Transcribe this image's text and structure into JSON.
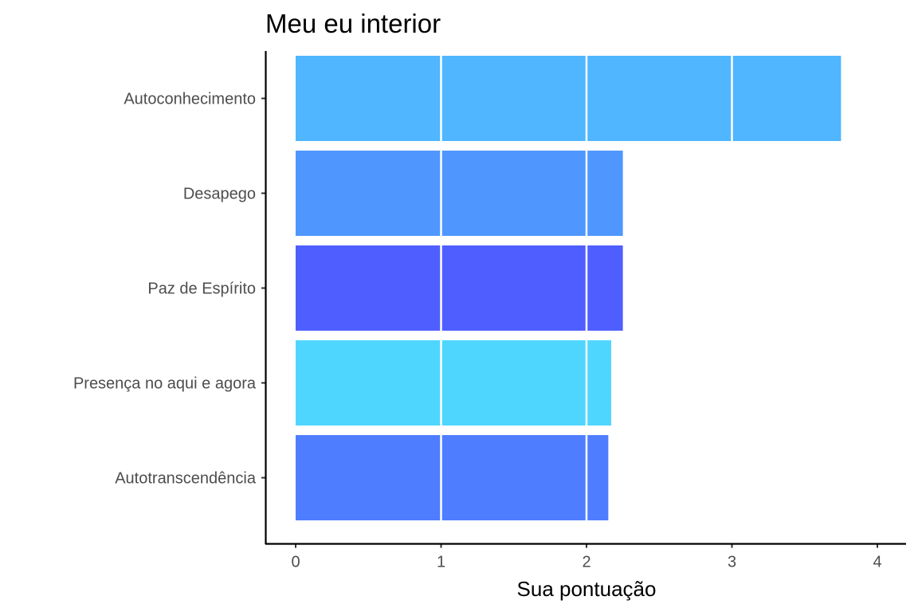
{
  "chart_data": {
    "type": "bar",
    "orientation": "horizontal",
    "title": "Meu eu interior",
    "xlabel": "Sua pontuação",
    "ylabel": "",
    "categories": [
      "Autoconhecimento",
      "Desapego",
      "Paz de Espírito",
      "Presença no aqui e agora",
      "Autotranscendência"
    ],
    "values": [
      3.75,
      2.25,
      2.25,
      2.17,
      2.15
    ],
    "colors": [
      "#4fb6ff",
      "#4f97ff",
      "#4f5fff",
      "#4fd6ff",
      "#4f7dff"
    ],
    "xlim": [
      -0.2,
      4.2
    ],
    "xticks": [
      0,
      1,
      2,
      3,
      4
    ],
    "grid": false,
    "legend": "none"
  }
}
